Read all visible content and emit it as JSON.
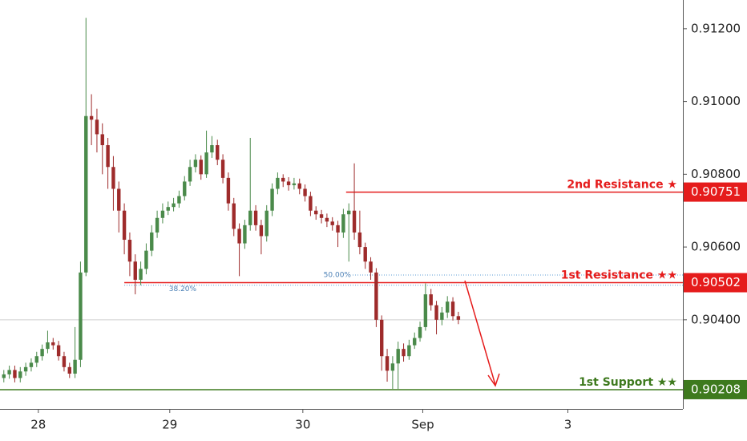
{
  "chart_data": {
    "type": "candlestick",
    "x": [
      0,
      1,
      2,
      3,
      4,
      5,
      6,
      7,
      8,
      9,
      10,
      11,
      12,
      13,
      14,
      15,
      16,
      17,
      18,
      19,
      20,
      21,
      22,
      23,
      24,
      25,
      26,
      27,
      28,
      29,
      30,
      31,
      32,
      33,
      34,
      35,
      36,
      37,
      38,
      39,
      40,
      41,
      42,
      43,
      44,
      45,
      46,
      47,
      48,
      49,
      50,
      51,
      52,
      53,
      54,
      55,
      56,
      57,
      58,
      59,
      60,
      61,
      62,
      63,
      64,
      65,
      66,
      67,
      68,
      69,
      70,
      71,
      72,
      73,
      74,
      75,
      76,
      77,
      78,
      79,
      80,
      81,
      82,
      83
    ],
    "open": [
      0.9024,
      0.9025,
      0.90262,
      0.9024,
      0.90258,
      0.9027,
      0.90282,
      0.903,
      0.9032,
      0.90338,
      0.9033,
      0.903,
      0.9027,
      0.90252,
      0.9029,
      0.9053,
      0.9096,
      0.9095,
      0.9091,
      0.9088,
      0.9082,
      0.9076,
      0.907,
      0.9062,
      0.9056,
      0.9051,
      0.9054,
      0.9059,
      0.9064,
      0.9068,
      0.907,
      0.9071,
      0.9072,
      0.9074,
      0.9078,
      0.9082,
      0.9084,
      0.908,
      0.9086,
      0.9088,
      0.9084,
      0.9079,
      0.9072,
      0.9065,
      0.9061,
      0.9066,
      0.907,
      0.9066,
      0.9063,
      0.907,
      0.9076,
      0.9079,
      0.9078,
      0.9077,
      0.90775,
      0.9076,
      0.9074,
      0.907,
      0.9069,
      0.9068,
      0.9067,
      0.9066,
      0.9064,
      0.9069,
      0.907,
      0.9064,
      0.906,
      0.9056,
      0.9053,
      0.904,
      0.903,
      0.9026,
      0.9028,
      0.9032,
      0.903,
      0.9033,
      0.9035,
      0.9038,
      0.9047,
      0.9044,
      0.904,
      0.9042,
      0.9045,
      0.9041
    ],
    "high": [
      0.90262,
      0.90274,
      0.90274,
      0.9027,
      0.90282,
      0.90294,
      0.90312,
      0.90332,
      0.9037,
      0.9035,
      0.90342,
      0.90312,
      0.90282,
      0.9038,
      0.9056,
      0.9123,
      0.9102,
      0.9098,
      0.9094,
      0.909,
      0.9085,
      0.9078,
      0.9072,
      0.9064,
      0.9058,
      0.9056,
      0.9061,
      0.9066,
      0.907,
      0.9072,
      0.90725,
      0.90735,
      0.90755,
      0.90795,
      0.9084,
      0.90855,
      0.90852,
      0.9092,
      0.90905,
      0.90895,
      0.90855,
      0.90805,
      0.90735,
      0.90665,
      0.90675,
      0.909,
      0.90715,
      0.90675,
      0.90715,
      0.90775,
      0.90805,
      0.908,
      0.90792,
      0.9079,
      0.90788,
      0.90772,
      0.90752,
      0.90712,
      0.90702,
      0.90692,
      0.90682,
      0.90672,
      0.90705,
      0.9072,
      0.9083,
      0.907,
      0.90612,
      0.90572,
      0.90542,
      0.90412,
      0.9032,
      0.903,
      0.9034,
      0.90335,
      0.90345,
      0.90365,
      0.90395,
      0.905,
      0.90485,
      0.90452,
      0.90435,
      0.90465,
      0.90462,
      0.90422
    ],
    "low": [
      0.90228,
      0.90238,
      0.90228,
      0.90228,
      0.90246,
      0.90258,
      0.9027,
      0.90288,
      0.90308,
      0.90318,
      0.90288,
      0.90258,
      0.9024,
      0.9024,
      0.9027,
      0.9052,
      0.9088,
      0.9086,
      0.908,
      0.9076,
      0.907,
      0.9064,
      0.9058,
      0.9052,
      0.9047,
      0.90495,
      0.90525,
      0.90575,
      0.90625,
      0.90665,
      0.90688,
      0.90698,
      0.90708,
      0.90728,
      0.90768,
      0.90805,
      0.90785,
      0.9079,
      0.90845,
      0.90825,
      0.90775,
      0.907,
      0.9063,
      0.9052,
      0.90595,
      0.90645,
      0.90645,
      0.9058,
      0.90615,
      0.90685,
      0.90745,
      0.90765,
      0.90755,
      0.90758,
      0.90745,
      0.90725,
      0.90685,
      0.90675,
      0.90665,
      0.90655,
      0.90645,
      0.906,
      0.90625,
      0.9056,
      0.9062,
      0.9058,
      0.9054,
      0.9051,
      0.9038,
      0.9026,
      0.9023,
      0.9021,
      0.9021,
      0.90285,
      0.9029,
      0.9032,
      0.9034,
      0.9037,
      0.90425,
      0.9036,
      0.90385,
      0.90405,
      0.90398,
      0.90388
    ],
    "close": [
      0.9025,
      0.90262,
      0.9024,
      0.90258,
      0.9027,
      0.90282,
      0.903,
      0.9032,
      0.90338,
      0.9033,
      0.903,
      0.9027,
      0.90252,
      0.9029,
      0.9053,
      0.9096,
      0.9095,
      0.9091,
      0.9088,
      0.9082,
      0.9076,
      0.907,
      0.9062,
      0.9056,
      0.9051,
      0.9054,
      0.9059,
      0.9064,
      0.9068,
      0.907,
      0.9071,
      0.9072,
      0.9074,
      0.9078,
      0.9082,
      0.9084,
      0.908,
      0.9086,
      0.9088,
      0.9084,
      0.9079,
      0.9072,
      0.9065,
      0.9061,
      0.9066,
      0.907,
      0.9066,
      0.9063,
      0.907,
      0.9076,
      0.9079,
      0.9078,
      0.9077,
      0.90775,
      0.9076,
      0.9074,
      0.907,
      0.9069,
      0.9068,
      0.9067,
      0.9066,
      0.9064,
      0.9069,
      0.907,
      0.9064,
      0.906,
      0.9056,
      0.9053,
      0.904,
      0.903,
      0.9026,
      0.9028,
      0.9032,
      0.903,
      0.9033,
      0.9035,
      0.9038,
      0.9047,
      0.9044,
      0.904,
      0.9042,
      0.9045,
      0.9041,
      0.904
    ],
    "up_color": "#4a8a4a",
    "down_color": "#9e2b2b",
    "xlim": [
      -0.7,
      124
    ],
    "xticks": [
      {
        "value": 6.3,
        "label": "28"
      },
      {
        "value": 30.3,
        "label": "29"
      },
      {
        "value": 54.6,
        "label": "30"
      },
      {
        "value": 76.5,
        "label": "Sep"
      },
      {
        "value": 103,
        "label": "3"
      }
    ],
    "ylim": [
      0.90155,
      0.91279
    ],
    "yticks": [
      {
        "value": 0.904,
        "label": "0.90400"
      },
      {
        "value": 0.906,
        "label": "0.90600"
      },
      {
        "value": 0.908,
        "label": "0.90800"
      },
      {
        "value": 0.91,
        "label": "0.91000"
      },
      {
        "value": 0.912,
        "label": "0.91200"
      }
    ],
    "last_price": 0.904,
    "levels": [
      {
        "label": "2nd Resistance ★",
        "value": 0.90751,
        "x_start": 62.5,
        "color": "#e51c1c"
      },
      {
        "label": "1st Resistance ★★",
        "value": 0.90502,
        "x_start": 22,
        "color": "#e51c1c"
      },
      {
        "label": "1st Support ★★",
        "value": 0.90208,
        "x_start": -0.7,
        "color": "#3e7a1e"
      }
    ],
    "fib_levels": [
      {
        "label": "50.00%",
        "value": 0.90523,
        "x_start": 63.7
      },
      {
        "label": "38.20%",
        "value": 0.90495,
        "x_start": 22
      }
    ]
  }
}
